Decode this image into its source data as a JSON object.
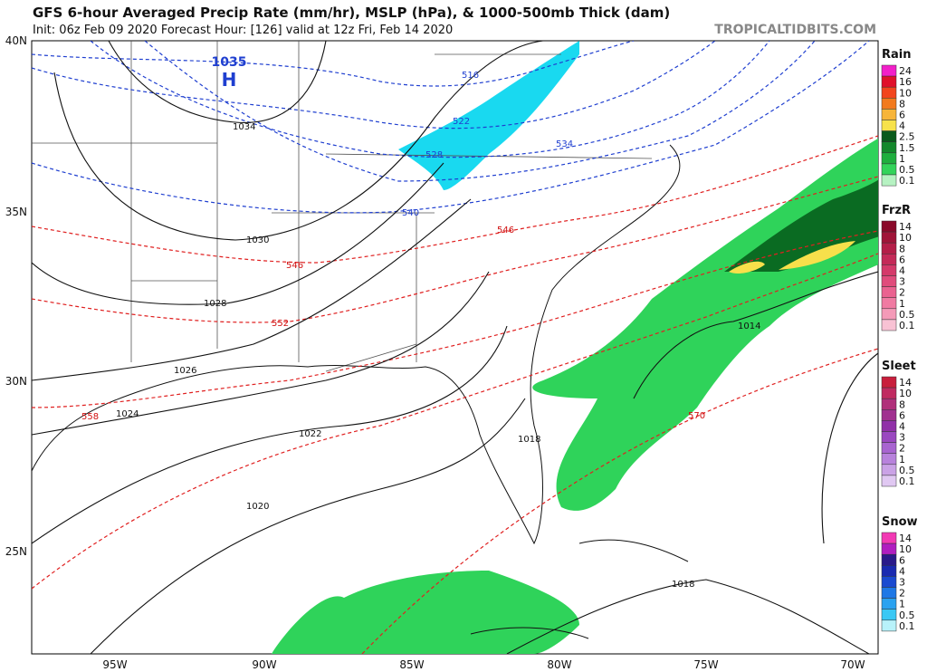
{
  "header": {
    "title": "GFS 6-hour Averaged Precip Rate (mm/hr), MSLP (hPa), & 1000-500mb Thick (dam)",
    "subtitle": "Init: 06z Feb 09 2020   Forecast Hour: [126]   valid at 12z Fri, Feb 14 2020",
    "watermark": "TROPICALTIDBITS.COM"
  },
  "high_symbol": "H",
  "pressure_labels": [
    "1035",
    "1034",
    "1030",
    "1028",
    "1026",
    "1024",
    "1022",
    "1020",
    "1018",
    "1018",
    "1014"
  ],
  "thickness_labels": [
    "516",
    "522",
    "528",
    "534",
    "540",
    "546",
    "546",
    "552",
    "558",
    "570"
  ],
  "latitudes": [
    "40N",
    "35N",
    "30N",
    "25N"
  ],
  "longitudes": [
    "95W",
    "90W",
    "85W",
    "80W",
    "75W",
    "70W"
  ],
  "legends": [
    {
      "title": "Rain",
      "items": [
        {
          "label": "24",
          "color": "#f21fc9"
        },
        {
          "label": "16",
          "color": "#e0102a"
        },
        {
          "label": "10",
          "color": "#f2451d"
        },
        {
          "label": "8",
          "color": "#f27a1d"
        },
        {
          "label": "6",
          "color": "#f7b53a"
        },
        {
          "label": "4",
          "color": "#f7e24b"
        },
        {
          "label": "2.5",
          "color": "#0a5a1c"
        },
        {
          "label": "1.5",
          "color": "#14882c"
        },
        {
          "label": "1",
          "color": "#1fae3e"
        },
        {
          "label": "0.5",
          "color": "#33d35a"
        },
        {
          "label": "0.1",
          "color": "#b6f2c2"
        }
      ]
    },
    {
      "title": "FrzR",
      "items": [
        {
          "label": "14",
          "color": "#8a0a2a"
        },
        {
          "label": "10",
          "color": "#a01438"
        },
        {
          "label": "8",
          "color": "#b41e48"
        },
        {
          "label": "6",
          "color": "#c42a58"
        },
        {
          "label": "4",
          "color": "#d43a6a"
        },
        {
          "label": "3",
          "color": "#e04c7c"
        },
        {
          "label": "2",
          "color": "#ea6290"
        },
        {
          "label": "1",
          "color": "#f07aa2"
        },
        {
          "label": "0.5",
          "color": "#f49ab8"
        },
        {
          "label": "0.1",
          "color": "#f8c2d4"
        }
      ]
    },
    {
      "title": "Sleet",
      "items": [
        {
          "label": "14",
          "color": "#c81e3c"
        },
        {
          "label": "10",
          "color": "#c02a60"
        },
        {
          "label": "8",
          "color": "#b0307a"
        },
        {
          "label": "6",
          "color": "#a03090"
        },
        {
          "label": "4",
          "color": "#9030a8"
        },
        {
          "label": "3",
          "color": "#9a48c0"
        },
        {
          "label": "2",
          "color": "#a864d0"
        },
        {
          "label": "1",
          "color": "#b882dc"
        },
        {
          "label": "0.5",
          "color": "#caa2e6"
        },
        {
          "label": "0.1",
          "color": "#e0c8f2"
        }
      ]
    },
    {
      "title": "Snow",
      "items": [
        {
          "label": "14",
          "color": "#f23ab4"
        },
        {
          "label": "10",
          "color": "#b01ec0"
        },
        {
          "label": "6",
          "color": "#2a1a8a"
        },
        {
          "label": "4",
          "color": "#1a2ab0"
        },
        {
          "label": "3",
          "color": "#1a4ad0"
        },
        {
          "label": "2",
          "color": "#1e78e6"
        },
        {
          "label": "1",
          "color": "#2aa2f0"
        },
        {
          "label": "0.5",
          "color": "#3ac8f4"
        },
        {
          "label": "0.1",
          "color": "#b8f2fa"
        }
      ]
    }
  ]
}
